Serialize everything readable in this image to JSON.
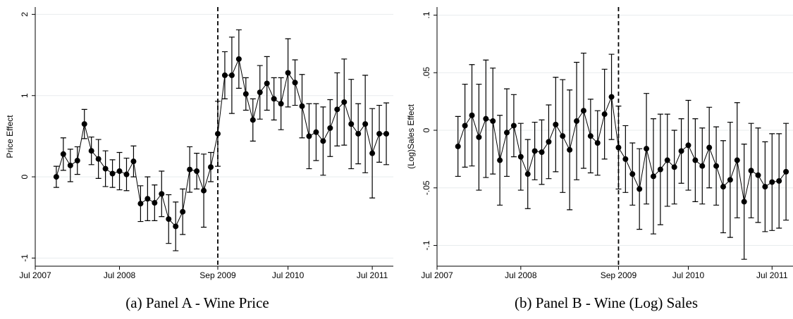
{
  "chart_data": [
    {
      "type": "line",
      "title": "(a) Panel A - Wine Price",
      "y_label": "Price Effect",
      "color": "#000000",
      "grid": true,
      "vline": "2009-09",
      "xlim": [
        "2007-07",
        "2011-10"
      ],
      "ylim": [
        -1.1,
        2.09
      ],
      "xticks": [
        {
          "value": "2007-07",
          "label": "Jul 2007"
        },
        {
          "value": "2008-07",
          "label": "Jul 2008"
        },
        {
          "value": "2009-09",
          "label": "Sep 2009"
        },
        {
          "value": "2010-07",
          "label": "Jul 2010"
        },
        {
          "value": "2011-07",
          "label": "Jul 2011"
        }
      ],
      "yticks": [
        -1,
        0,
        1,
        2
      ],
      "x": [
        "2007-10",
        "2007-11",
        "2007-12",
        "2008-01",
        "2008-02",
        "2008-03",
        "2008-04",
        "2008-05",
        "2008-06",
        "2008-07",
        "2008-08",
        "2008-09",
        "2008-10",
        "2008-11",
        "2008-12",
        "2009-01",
        "2009-02",
        "2009-03",
        "2009-04",
        "2009-05",
        "2009-06",
        "2009-07",
        "2009-08",
        "2009-09",
        "2009-10",
        "2009-11",
        "2009-12",
        "2010-01",
        "2010-02",
        "2010-03",
        "2010-04",
        "2010-05",
        "2010-06",
        "2010-07",
        "2010-08",
        "2010-09",
        "2010-10",
        "2010-11",
        "2010-12",
        "2011-01",
        "2011-02",
        "2011-03",
        "2011-04",
        "2011-05",
        "2011-06",
        "2011-07",
        "2011-08",
        "2011-09"
      ],
      "values": [
        0.0,
        0.28,
        0.14,
        0.2,
        0.65,
        0.32,
        0.22,
        0.1,
        0.04,
        0.07,
        0.03,
        0.19,
        -0.33,
        -0.27,
        -0.32,
        -0.21,
        -0.52,
        -0.61,
        -0.43,
        0.09,
        0.07,
        -0.17,
        0.12,
        0.53,
        1.25,
        1.25,
        1.45,
        1.02,
        0.7,
        1.04,
        1.15,
        0.96,
        0.9,
        1.28,
        1.16,
        0.87,
        0.5,
        0.55,
        0.44,
        0.6,
        0.83,
        0.92,
        0.65,
        0.53,
        0.65,
        0.29,
        0.53,
        0.53
      ],
      "errors": [
        0.13,
        0.2,
        0.2,
        0.17,
        0.18,
        0.17,
        0.24,
        0.22,
        0.17,
        0.23,
        0.2,
        0.19,
        0.22,
        0.27,
        0.22,
        0.28,
        0.3,
        0.3,
        0.28,
        0.28,
        0.22,
        0.45,
        0.18,
        0.4,
        0.29,
        0.47,
        0.36,
        0.2,
        0.26,
        0.33,
        0.33,
        0.26,
        0.32,
        0.42,
        0.28,
        0.39,
        0.4,
        0.35,
        0.42,
        0.35,
        0.45,
        0.53,
        0.55,
        0.37,
        0.6,
        0.55,
        0.35,
        0.38
      ]
    },
    {
      "type": "line",
      "title": "(b) Panel B - Wine (Log) Sales",
      "y_label": "(Log)Sales Effect",
      "color": "#000000",
      "grid": true,
      "vline": "2009-09",
      "xlim": [
        "2007-07",
        "2011-10"
      ],
      "ylim": [
        -0.118,
        0.107
      ],
      "xticks": [
        {
          "value": "2007-07",
          "label": "Jul 2007"
        },
        {
          "value": "2008-07",
          "label": "Jul 2008"
        },
        {
          "value": "2009-09",
          "label": "Sep 2009"
        },
        {
          "value": "2010-07",
          "label": "Jul 2010"
        },
        {
          "value": "2011-07",
          "label": "Jul 2011"
        }
      ],
      "yticks": [
        {
          "value": -0.1,
          "label": "-.1"
        },
        {
          "value": -0.05,
          "label": "-.05"
        },
        0,
        {
          "value": 0.05,
          "label": ".05"
        },
        {
          "value": 0.1,
          "label": ".1"
        }
      ],
      "x": [
        "2007-10",
        "2007-11",
        "2007-12",
        "2008-01",
        "2008-02",
        "2008-03",
        "2008-04",
        "2008-05",
        "2008-06",
        "2008-07",
        "2008-08",
        "2008-09",
        "2008-10",
        "2008-11",
        "2008-12",
        "2009-01",
        "2009-02",
        "2009-03",
        "2009-04",
        "2009-05",
        "2009-06",
        "2009-07",
        "2009-08",
        "2009-09",
        "2009-10",
        "2009-11",
        "2009-12",
        "2010-01",
        "2010-02",
        "2010-03",
        "2010-04",
        "2010-05",
        "2010-06",
        "2010-07",
        "2010-08",
        "2010-09",
        "2010-10",
        "2010-11",
        "2010-12",
        "2011-01",
        "2011-02",
        "2011-03",
        "2011-04",
        "2011-05",
        "2011-06",
        "2011-07",
        "2011-08",
        "2011-09"
      ],
      "values": [
        -0.014,
        0.004,
        0.013,
        -0.006,
        0.01,
        0.008,
        -0.026,
        -0.002,
        0.004,
        -0.023,
        -0.038,
        -0.018,
        -0.019,
        -0.01,
        0.005,
        -0.005,
        -0.017,
        0.008,
        0.017,
        -0.005,
        -0.011,
        0.014,
        0.029,
        -0.015,
        -0.025,
        -0.038,
        -0.051,
        -0.016,
        -0.04,
        -0.034,
        -0.026,
        -0.032,
        -0.018,
        -0.013,
        -0.026,
        -0.031,
        -0.015,
        -0.031,
        -0.049,
        -0.043,
        -0.026,
        -0.062,
        -0.035,
        -0.039,
        -0.049,
        -0.045,
        -0.044,
        -0.036
      ],
      "errors": [
        0.026,
        0.036,
        0.044,
        0.046,
        0.051,
        0.046,
        0.039,
        0.038,
        0.027,
        0.029,
        0.03,
        0.025,
        0.028,
        0.032,
        0.041,
        0.049,
        0.052,
        0.051,
        0.05,
        0.032,
        0.028,
        0.039,
        0.037,
        0.036,
        0.029,
        0.027,
        0.035,
        0.048,
        0.05,
        0.048,
        0.04,
        0.032,
        0.028,
        0.039,
        0.036,
        0.033,
        0.035,
        0.034,
        0.04,
        0.05,
        0.05,
        0.05,
        0.041,
        0.041,
        0.039,
        0.042,
        0.041,
        0.042
      ]
    }
  ]
}
